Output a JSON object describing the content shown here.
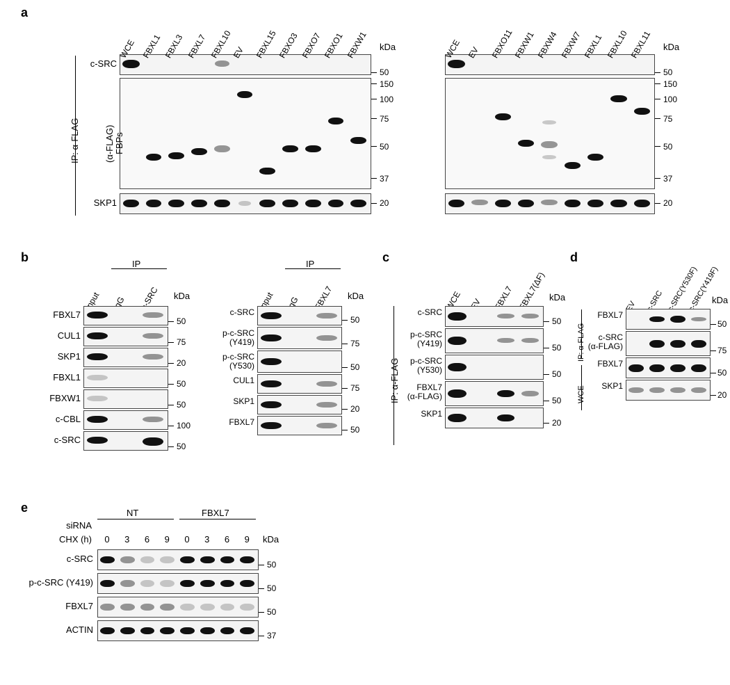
{
  "panels": {
    "a": "a",
    "b": "b",
    "c": "c",
    "d": "d",
    "e": "e"
  },
  "kDa": "kDa",
  "panel_a": {
    "left_lanes": [
      "WCE",
      "FBXL1",
      "FBXL3",
      "FBXL7",
      "FBXL10",
      "EV",
      "FBXL15",
      "FBXO3",
      "FBXO7",
      "FBXO1",
      "FBXW1"
    ],
    "right_lanes": [
      "WCE",
      "EV",
      "FBXO11",
      "FBXW1",
      "FBXW4",
      "FBXW7",
      "FBXL1",
      "FBXL10",
      "FBXL11"
    ],
    "row_labels": {
      "csrc": "c-SRC",
      "fbps_line1": "FBPs",
      "fbps_line2": "(α-FLAG)",
      "skp1": "SKP1"
    },
    "ip_label": "IP: α-FLAG",
    "mw_left": {
      "csrc": "50",
      "fbps": [
        "150",
        "100",
        "75",
        "50",
        "37"
      ],
      "skp1": "20"
    },
    "mw_right": {
      "csrc": "50",
      "fbps": [
        "150",
        "100",
        "75",
        "50",
        "37"
      ],
      "skp1": "20"
    }
  },
  "panel_b": {
    "left": {
      "lanes": [
        "Input",
        "IgG",
        "c-SRC"
      ],
      "ip_header": "IP",
      "rows": [
        "FBXL7",
        "CUL1",
        "SKP1",
        "FBXL1",
        "FBXW1",
        "c-CBL",
        "c-SRC"
      ],
      "mw": [
        "50",
        "75",
        "20",
        "50",
        "50",
        "100",
        "50"
      ]
    },
    "right": {
      "lanes": [
        "Input",
        "IgG",
        "FBXL7"
      ],
      "ip_header": "IP",
      "rows": [
        "c-SRC",
        "p-c-SRC\n(Y419)",
        "p-c-SRC\n(Y530)",
        "CUL1",
        "SKP1",
        "FBXL7"
      ],
      "mw": [
        "50",
        "75",
        "50",
        "75",
        "20",
        "50"
      ]
    }
  },
  "panel_c": {
    "lanes": [
      "WCE",
      "EV",
      "FBXL7",
      "FBXL7(ΔF)"
    ],
    "ip_label": "IP: α-FLAG",
    "rows": [
      "c-SRC",
      "p-c-SRC\n(Y419)",
      "p-c-SRC\n(Y530)",
      "FBXL7\n(α-FLAG)",
      "SKP1"
    ],
    "mw": [
      "50",
      "50",
      "50",
      "50",
      "20"
    ]
  },
  "panel_d": {
    "lanes": [
      "EV",
      "c-SRC",
      "c-SRC(Y530F)",
      "c-SRC(Y419F)"
    ],
    "ip_label": "IP: α-FLAG",
    "wce_label": "WCE",
    "rows_ip": [
      "FBXL7",
      "c-SRC\n(α-FLAG)"
    ],
    "rows_wce": [
      "FBXL7",
      "SKP1"
    ],
    "mw": [
      "50",
      "75",
      "50",
      "20"
    ]
  },
  "panel_e": {
    "sirna_label": "siRNA",
    "nt": "NT",
    "fbxl7": "FBXL7",
    "chx_label": "CHX (h)",
    "times": [
      "0",
      "3",
      "6",
      "9",
      "0",
      "3",
      "6",
      "9"
    ],
    "rows": [
      "c-SRC",
      "p-c-SRC (Y419)",
      "FBXL7",
      "ACTIN"
    ],
    "mw": [
      "50",
      "50",
      "50",
      "37"
    ]
  },
  "style": {
    "bg": "#ffffff",
    "band_color": "#111111",
    "strip_bg": "#f4f4f4",
    "strip_border": "#444444",
    "font_family": "Arial",
    "panel_label_fontsize": 18,
    "label_fontsize": 13,
    "mw_fontsize": 12
  }
}
